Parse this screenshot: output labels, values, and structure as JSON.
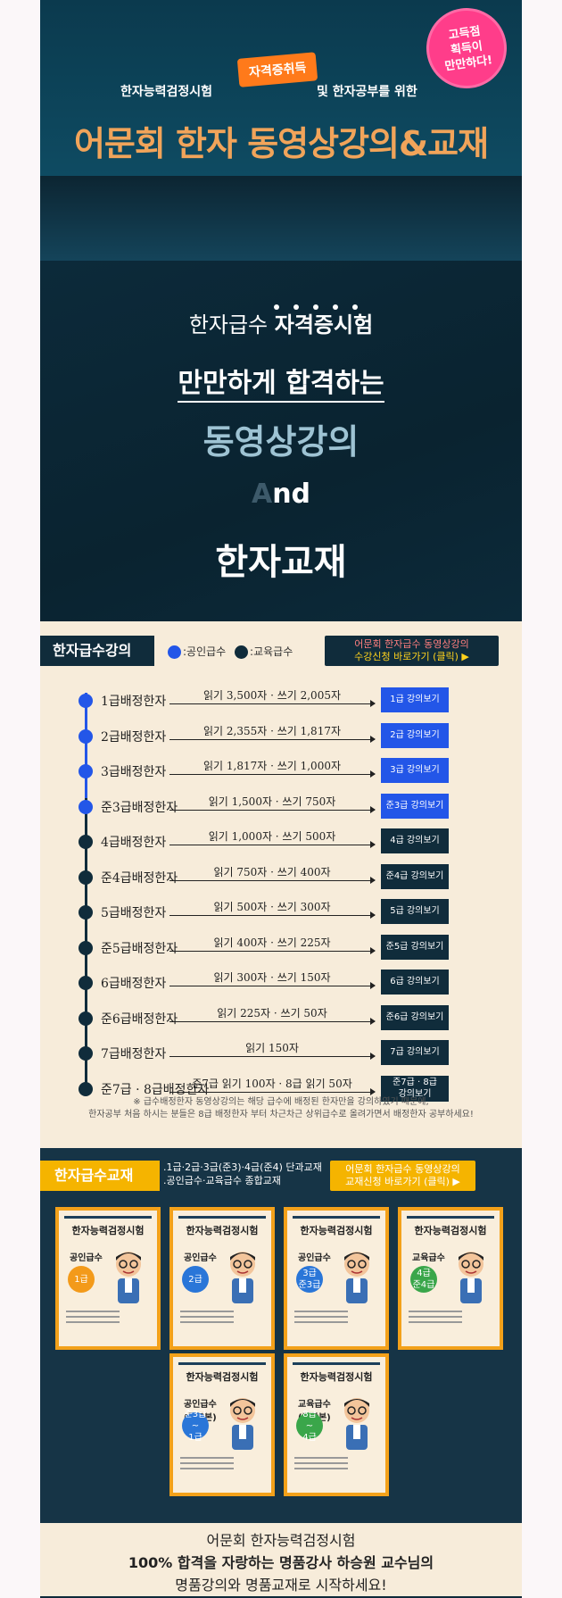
{
  "header": {
    "badge": "고득점\n획득이\n만만하다!",
    "line_left": "한자능력검정시험",
    "cert_tag": "자격증취득",
    "line_right": "및 한자공부를 위한",
    "title": "어문회 한자 동영상강의&교재"
  },
  "hero": {
    "l1a": "한자급수 ",
    "l1b": "자격증시험",
    "l2": "만만하게 합격하는",
    "l3": "동영상강의",
    "l4a": "A",
    "l4b": "nd",
    "l5": "한자교재"
  },
  "lectures": {
    "head": "한자급수강의",
    "legend_public": ":공인급수",
    "legend_edu": ":교육급수",
    "reg_top": "어문회 한자급수 동영상강의",
    "reg_bottom": "수강신청 바로가기 (클릭) ▶",
    "rows": [
      {
        "name": "1급배정한자",
        "read": "읽기 3,500자 · 쓰기 2,005자",
        "btn": "1급 강의보기",
        "type": "public"
      },
      {
        "name": "2급배정한자",
        "read": "읽기 2,355자 · 쓰기 1,817자",
        "btn": "2급 강의보기",
        "type": "public"
      },
      {
        "name": "3급배정한자",
        "read": "읽기 1,817자 · 쓰기 1,000자",
        "btn": "3급 강의보기",
        "type": "public"
      },
      {
        "name": "준3급배정한자",
        "read": "읽기 1,500자 · 쓰기 750자",
        "btn": "준3급 강의보기",
        "type": "public"
      },
      {
        "name": "4급배정한자",
        "read": "읽기 1,000자 · 쓰기 500자",
        "btn": "4급 강의보기",
        "type": "edu"
      },
      {
        "name": "준4급배정한자",
        "read": "읽기 750자 · 쓰기 400자",
        "btn": "준4급 강의보기",
        "type": "edu"
      },
      {
        "name": "5급배정한자",
        "read": "읽기 500자 · 쓰기 300자",
        "btn": "5급 강의보기",
        "type": "edu"
      },
      {
        "name": "준5급배정한자",
        "read": "읽기 400자 · 쓰기 225자",
        "btn": "준5급 강의보기",
        "type": "edu"
      },
      {
        "name": "6급배정한자",
        "read": "읽기 300자 · 쓰기 150자",
        "btn": "6급 강의보기",
        "type": "edu"
      },
      {
        "name": "준6급배정한자",
        "read": "읽기 225자 · 쓰기 50자",
        "btn": "준6급 강의보기",
        "type": "edu"
      },
      {
        "name": "7급배정한자",
        "read": "읽기 150자",
        "btn": "7급 강의보기",
        "type": "edu"
      },
      {
        "name": "준7급 · 8급배정한자",
        "read": "준7급 읽기 100자 · 8급 읽기 50자",
        "btn": "준7급 · 8급\n강의보기",
        "type": "edu"
      }
    ],
    "note1": "※ 급수배정한자 동영상강의는 해당 급수에 배정된 한자만을 강의하였기 때문에,",
    "note2": "한자공부 처음 하시는 분들은 8급 배정한자 부터 차근차근 상위급수로 올려가면서 배정한자 공부하세요!"
  },
  "books": {
    "head": "한자급수교재",
    "desc1": ".1급·2급·3급(준3)·4급(준4) 단과교재",
    "desc2": ".공인급수·교육급수 종합교재",
    "btn_top": "어문회 한자급수 동영상강의",
    "btn_bottom": "교재신청 바로가기 (클릭) ▶",
    "title": "한자능력검정시험",
    "items": [
      {
        "kind": "공인급수",
        "level": "1급",
        "color": "#f39a1a"
      },
      {
        "kind": "공인급수",
        "level": "2급",
        "color": "#2a76d8"
      },
      {
        "kind": "공인급수",
        "level": "3급\n준3급",
        "color": "#2a76d8"
      },
      {
        "kind": "교육급수",
        "level": "4급\n준4급",
        "color": "#3aa64a"
      },
      {
        "kind": "공인급수\n(종합본)",
        "level": "준3급\n~\n1급",
        "color": "#2a76d8"
      },
      {
        "kind": "교육급수\n(종합본)",
        "level": "8급\n~\n4급",
        "color": "#3aa64a"
      }
    ]
  },
  "footer": {
    "line1": "어문회 한자능력검정시험",
    "line2": "100% 합격을 자랑하는 명품강사 하승원 교수님의",
    "line3": "명품강의와 명품교재로 시작하세요!"
  },
  "colors": {
    "public": "#2356e8",
    "edu": "#102c3b",
    "accent": "#f5b400",
    "title": "#f1a45a"
  }
}
